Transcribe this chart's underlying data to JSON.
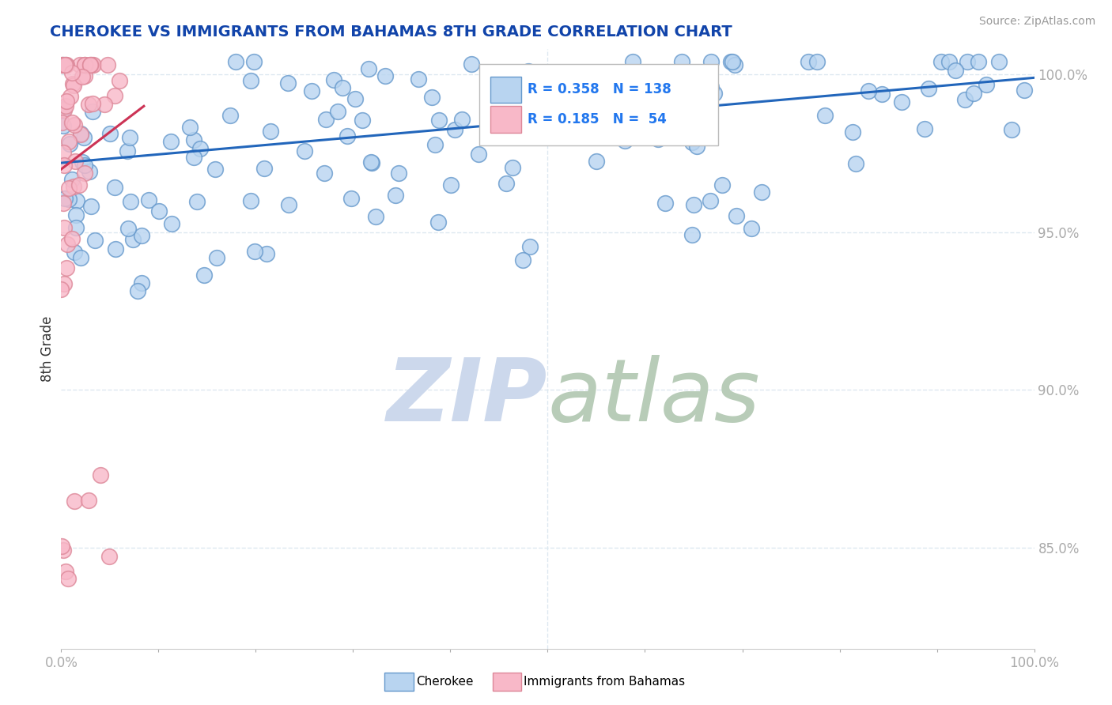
{
  "title": "CHEROKEE VS IMMIGRANTS FROM BAHAMAS 8TH GRADE CORRELATION CHART",
  "source": "Source: ZipAtlas.com",
  "ylabel": "8th Grade",
  "xlim": [
    0,
    1
  ],
  "ylim": [
    0.818,
    1.008
  ],
  "xtick_labels": [
    "0.0%",
    "100.0%"
  ],
  "xtick_positions": [
    0,
    1
  ],
  "ytick_labels": [
    "85.0%",
    "90.0%",
    "95.0%",
    "100.0%"
  ],
  "ytick_positions": [
    0.85,
    0.9,
    0.95,
    1.0
  ],
  "r_blue": 0.358,
  "n_blue": 138,
  "r_pink": 0.185,
  "n_pink": 54,
  "blue_fill": "#b8d4f0",
  "blue_edge": "#6699cc",
  "pink_fill": "#f8b8c8",
  "pink_edge": "#dd8899",
  "trend_blue": "#2266bb",
  "trend_pink": "#cc3355",
  "watermark_zip_color": "#ccd8ec",
  "watermark_atlas_color": "#b8ccb8",
  "background_color": "#ffffff",
  "grid_color": "#dde8f0",
  "legend_box_color": "#ffffff",
  "legend_border_color": "#cccccc",
  "legend_text_color": "#2277ee",
  "title_color": "#1144aa",
  "source_color": "#999999",
  "ytick_color": "#2277ee",
  "xtick_color": "#777777",
  "ylabel_color": "#333333",
  "seed": 7,
  "marker_size": 200
}
